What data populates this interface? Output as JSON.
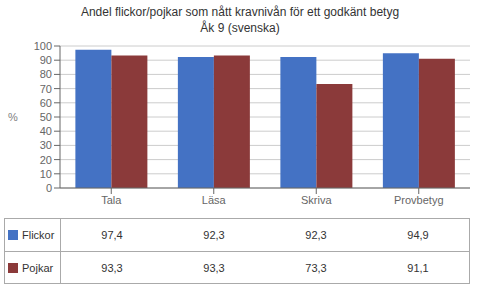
{
  "chart_data": {
    "type": "bar",
    "title": "Andel flickor/pojkar som nått kravnivån för ett godkänt betyg",
    "subtitle": "Åk 9 (svenska)",
    "categories": [
      "Tala",
      "Läsa",
      "Skriva",
      "Provbetyg"
    ],
    "series": [
      {
        "name": "Flickor",
        "color": "#4472C4",
        "values": [
          97.4,
          92.3,
          92.3,
          94.9
        ],
        "value_labels": [
          "97,4",
          "92,3",
          "92,3",
          "94,9"
        ]
      },
      {
        "name": "Pojkar",
        "color": "#8B3A3A",
        "values": [
          93.3,
          93.3,
          73.3,
          91.1
        ],
        "value_labels": [
          "93,3",
          "93,3",
          "73,3",
          "91,1"
        ]
      }
    ],
    "ylabel": "%",
    "ylim": [
      0,
      100
    ],
    "yticks": [
      0,
      10,
      20,
      30,
      40,
      50,
      60,
      70,
      80,
      90,
      100
    ],
    "grid": true
  }
}
